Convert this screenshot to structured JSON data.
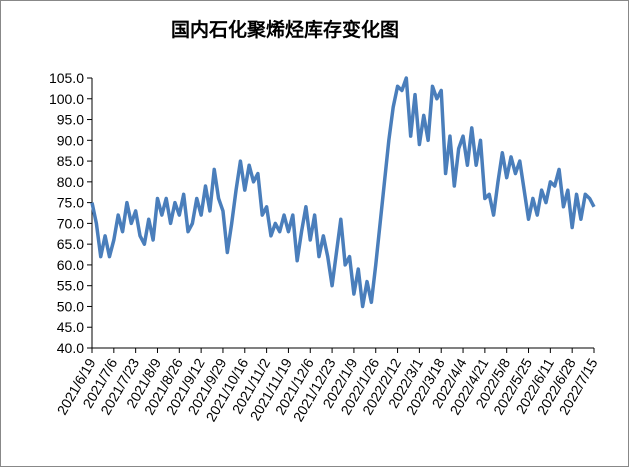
{
  "chart_data": {
    "type": "line",
    "title": "国内石化聚烯烃库存变化图",
    "categories": [
      "2021/6/19",
      null,
      null,
      null,
      null,
      "2021/7/6",
      null,
      null,
      null,
      null,
      "2021/7/23",
      null,
      null,
      null,
      null,
      "2021/8/9",
      null,
      null,
      null,
      null,
      "2021/8/26",
      null,
      null,
      null,
      null,
      "2021/9/12",
      null,
      null,
      null,
      null,
      "2021/9/29",
      null,
      null,
      null,
      null,
      "2021/10/16",
      null,
      null,
      null,
      null,
      "2021/11/2",
      null,
      null,
      null,
      null,
      "2021/11/19",
      null,
      null,
      null,
      null,
      "2021/12/6",
      null,
      null,
      null,
      null,
      "2021/12/23",
      null,
      null,
      null,
      null,
      "2022/1/9",
      null,
      null,
      null,
      null,
      "2022/1/26",
      null,
      null,
      null,
      null,
      "2022/2/12",
      null,
      null,
      null,
      null,
      "2022/3/1",
      null,
      null,
      null,
      null,
      "2022/3/18",
      null,
      null,
      null,
      null,
      "2022/4/4",
      null,
      null,
      null,
      null,
      "2022/4/21",
      null,
      null,
      null,
      null,
      "2022/5/8",
      null,
      null,
      null,
      null,
      "2022/5/25",
      null,
      null,
      null,
      null,
      "2022/6/11",
      null,
      null,
      null,
      null,
      "2022/6/28",
      null,
      null,
      null,
      null,
      "2022/7/15"
    ],
    "values": [
      75,
      70,
      62,
      67,
      62,
      66,
      72,
      68,
      75,
      70,
      73,
      67,
      65,
      71,
      66,
      76,
      72,
      76,
      70,
      75,
      72,
      77,
      68,
      70,
      76,
      72,
      79,
      73,
      83,
      76,
      73,
      63,
      70,
      78,
      85,
      78,
      84,
      80,
      82,
      72,
      74,
      67,
      70,
      68,
      72,
      68,
      72,
      61,
      68,
      74,
      66,
      72,
      62,
      67,
      62,
      55,
      63,
      71,
      60,
      62,
      53,
      59,
      50,
      56,
      51,
      60,
      70,
      80,
      90,
      98,
      103,
      102,
      105,
      91,
      101,
      89,
      96,
      90,
      103,
      100,
      102,
      82,
      91,
      79,
      88,
      91,
      84,
      93,
      84,
      90,
      76,
      77,
      72,
      80,
      87,
      81,
      86,
      82,
      85,
      78,
      71,
      76,
      72,
      78,
      75,
      80,
      79,
      83,
      74,
      78,
      69,
      77,
      71,
      77,
      76,
      74
    ],
    "color": "#4a7ebb",
    "ylim": [
      40,
      105
    ],
    "yticks": [
      {
        "value": 40,
        "label": "40.0"
      },
      {
        "value": 45,
        "label": "45.0"
      },
      {
        "value": 50,
        "label": "50.0"
      },
      {
        "value": 55,
        "label": "55.0"
      },
      {
        "value": 60,
        "label": "60.0"
      },
      {
        "value": 65,
        "label": "65.0"
      },
      {
        "value": 70,
        "label": "70.0"
      },
      {
        "value": 75,
        "label": "75.0"
      },
      {
        "value": 80,
        "label": "80.0"
      },
      {
        "value": 85,
        "label": "85.0"
      },
      {
        "value": 90,
        "label": "90.0"
      },
      {
        "value": 95,
        "label": "95.0"
      },
      {
        "value": 100,
        "label": "100.0"
      },
      {
        "value": 105,
        "label": "105.0"
      }
    ],
    "grid": false
  }
}
